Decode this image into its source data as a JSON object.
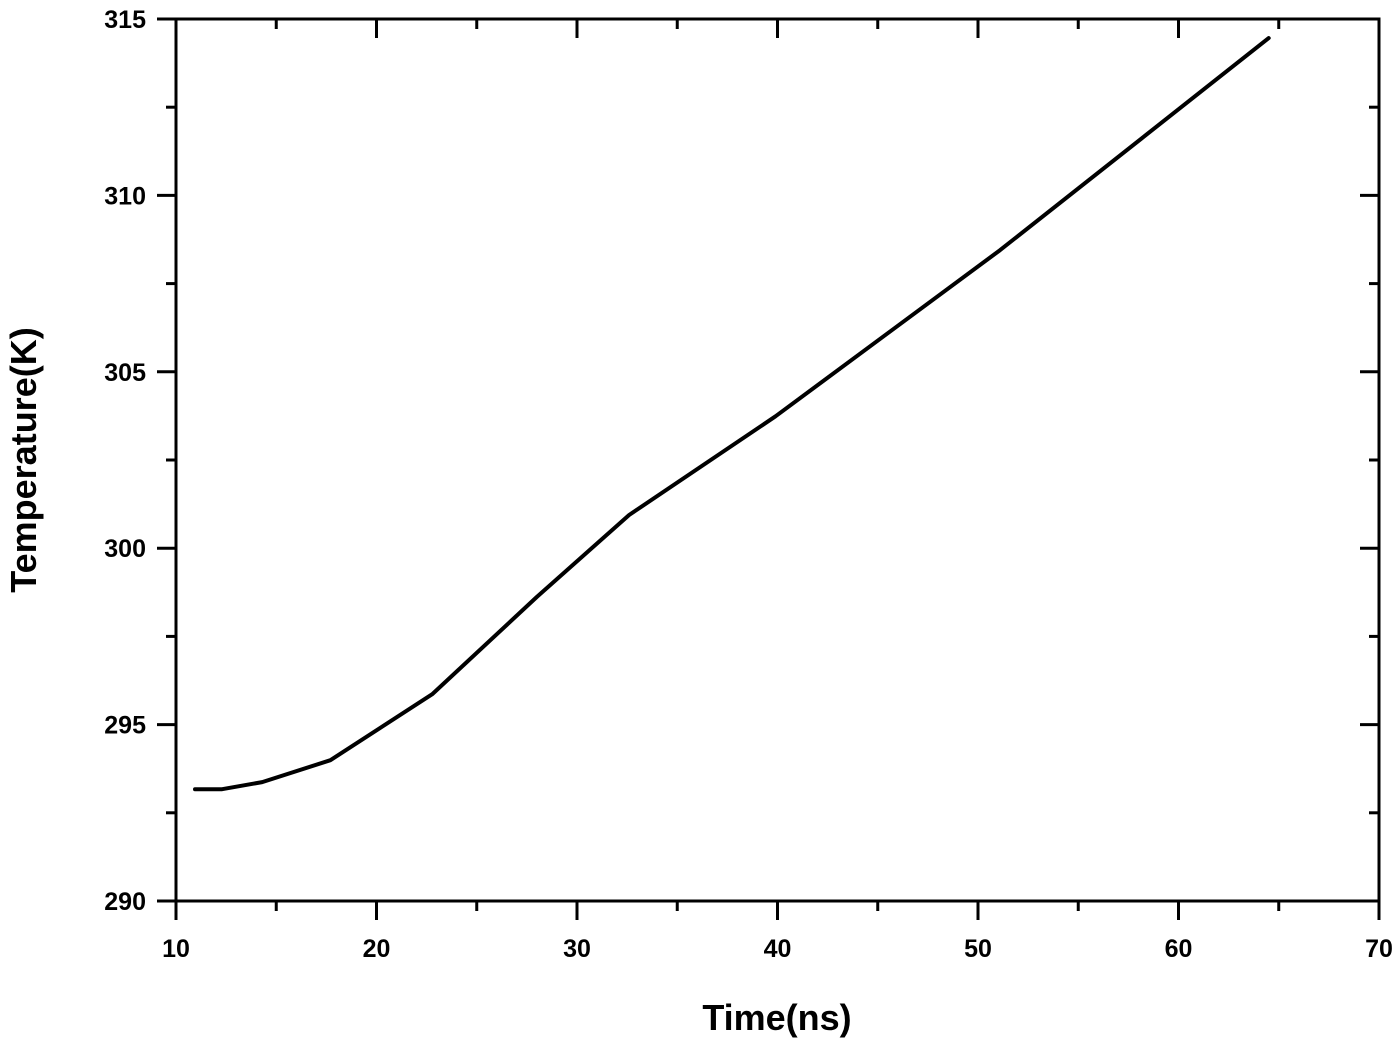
{
  "chart_data": {
    "type": "line",
    "title": "",
    "xlabel": "Time(ns)",
    "ylabel": "Temperature(K)",
    "xlim": [
      10,
      70
    ],
    "ylim": [
      290,
      315
    ],
    "xticks": [
      10,
      20,
      30,
      40,
      50,
      60,
      70
    ],
    "yticks": [
      290,
      295,
      300,
      305,
      310,
      315
    ],
    "x_minor_step": 5,
    "y_minor_step": 2.5,
    "grid": false,
    "legend": null,
    "series": [
      {
        "name": "Temperature",
        "color": "#000000",
        "x": [
          10.95,
          12.3,
          14.3,
          17.7,
          22.8,
          28.0,
          32.6,
          39.9,
          51.1,
          64.5
        ],
        "y": [
          293.17,
          293.17,
          293.37,
          293.99,
          295.87,
          298.62,
          300.94,
          303.74,
          308.45,
          314.46
        ]
      }
    ]
  }
}
